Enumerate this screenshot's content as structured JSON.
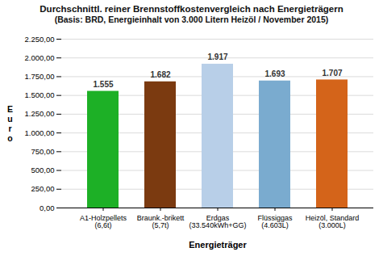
{
  "chart_data": {
    "type": "bar",
    "title": "Durchschnittl. reiner Brennstoffkostenvergleich nach Energieträgern",
    "subtitle": "(Basis: BRD, Energieinhalt von  3.000 Litern Heizöl / November 2015)",
    "categories": [
      "A1-Holzpellets\n(6,6t)",
      "Braunk.-brikett\n(5,7t)",
      "Erdgas\n(33.540kWh+GG)",
      "Flüssiggas\n(4.603L)",
      "Heizöl, Standard\n(3.000L)"
    ],
    "values": [
      1555,
      1682,
      1917,
      1693,
      1707
    ],
    "value_labels": [
      "1.555",
      "1.682",
      "1.917",
      "1.693",
      "1.707"
    ],
    "data_labels": true,
    "colors": [
      "#1db026",
      "#7B3A10",
      "#b8cfe8",
      "#7aabcf",
      "#d4641a"
    ],
    "xlabel": "Energieträger",
    "ylabel": "E\nu\nr\no",
    "ylim": [
      0,
      2250
    ],
    "yticks": [
      {
        "value": 0,
        "label": "0,00"
      },
      {
        "value": 250,
        "label": "250,00"
      },
      {
        "value": 500,
        "label": "500,00"
      },
      {
        "value": 750,
        "label": "750,00"
      },
      {
        "value": 1000,
        "label": "1.000,00"
      },
      {
        "value": 1250,
        "label": "1.250,00"
      },
      {
        "value": 1500,
        "label": "1.500,00"
      },
      {
        "value": 1750,
        "label": "1.750,00"
      },
      {
        "value": 2000,
        "label": "2.000,00"
      },
      {
        "value": 2250,
        "label": "2.250,00"
      }
    ],
    "grid": true
  }
}
